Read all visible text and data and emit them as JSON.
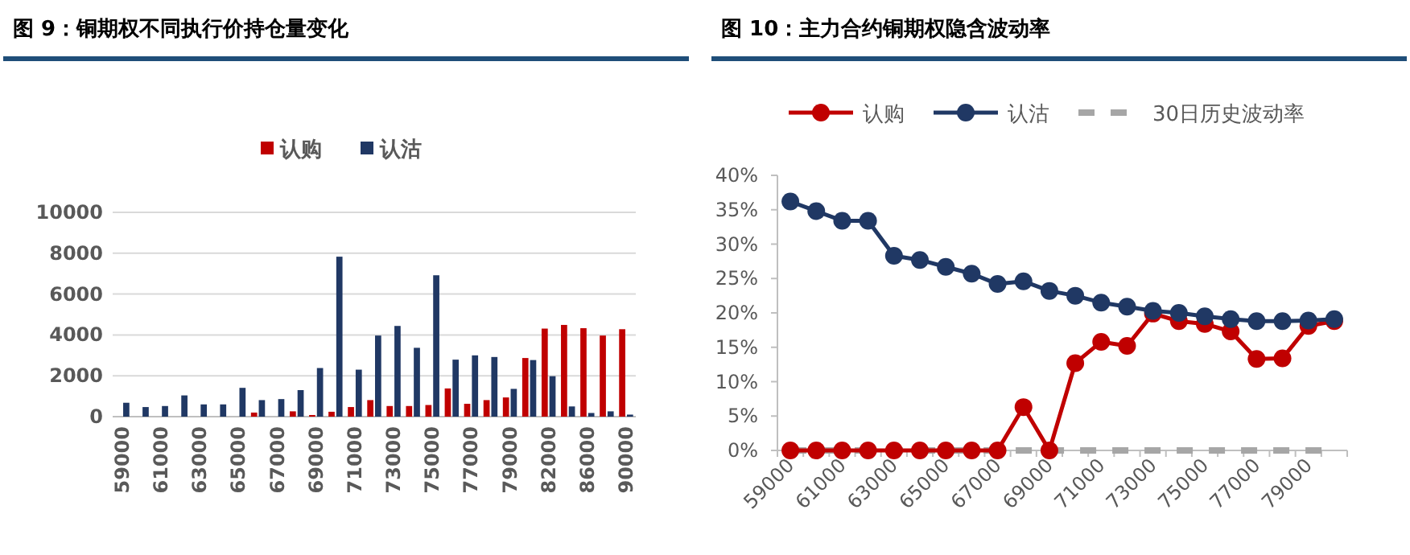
{
  "chart_data": [
    {
      "type": "bar",
      "title": "图 9：铜期权不同执行价持仓量变化",
      "categories": [
        "59000",
        null,
        "61000",
        null,
        "63000",
        null,
        "65000",
        null,
        "67000",
        null,
        "69000",
        null,
        "71000",
        null,
        "73000",
        null,
        "75000",
        null,
        "77000",
        null,
        "79000",
        null,
        "82000",
        null,
        "86000",
        null,
        "90000"
      ],
      "series": [
        {
          "name": "认购",
          "color": "#c00000",
          "values": [
            0,
            0,
            0,
            0,
            0,
            0,
            0,
            200,
            0,
            260,
            80,
            240,
            470,
            810,
            520,
            520,
            570,
            1380,
            630,
            810,
            940,
            2870,
            4310,
            4490,
            4330,
            3970,
            4280
          ]
        },
        {
          "name": "认沽",
          "color": "#203864",
          "values": [
            680,
            470,
            520,
            1040,
            600,
            600,
            1410,
            810,
            860,
            1300,
            2380,
            7830,
            2300,
            3970,
            4440,
            3370,
            6920,
            2790,
            3000,
            2920,
            1360,
            2770,
            1980,
            500,
            180,
            260,
            100
          ]
        }
      ],
      "ylim": [
        0,
        10000
      ],
      "yticks": [
        0,
        2000,
        4000,
        6000,
        8000,
        10000
      ],
      "grid": "y",
      "legend": "top"
    },
    {
      "type": "line",
      "title": "图 10：主力合约铜期权隐含波动率",
      "categories": [
        "59000",
        null,
        "61000",
        null,
        "63000",
        null,
        "65000",
        null,
        "67000",
        null,
        "69000",
        null,
        "71000",
        null,
        "73000",
        null,
        "75000",
        null,
        "77000",
        null,
        "79000",
        null
      ],
      "series": [
        {
          "name": "认购",
          "color": "#c00000",
          "marker": "circle",
          "line_style": "solid",
          "values": [
            0,
            0,
            0,
            0,
            0,
            0,
            0,
            0,
            0,
            6.3,
            0,
            12.7,
            15.8,
            15.2,
            19.9,
            18.8,
            18.4,
            17.3,
            13.3,
            13.4,
            18.1,
            18.8
          ]
        },
        {
          "name": "认沽",
          "color": "#203864",
          "marker": "circle",
          "line_style": "solid",
          "values": [
            36.2,
            34.8,
            33.4,
            33.4,
            28.3,
            27.7,
            26.7,
            25.7,
            24.2,
            24.6,
            23.2,
            22.5,
            21.5,
            20.9,
            20.3,
            20.0,
            19.5,
            19.1,
            18.8,
            18.8,
            18.9,
            19.1
          ]
        },
        {
          "name": "30日历史波动率",
          "color": "#a6a6a6",
          "marker": "none",
          "line_style": "dashed",
          "values": [
            0,
            0,
            0,
            0,
            0,
            0,
            0,
            0,
            0,
            0,
            0,
            0,
            0,
            0,
            0,
            0,
            0,
            0,
            0,
            0,
            0,
            0
          ]
        }
      ],
      "ylim": [
        0,
        40
      ],
      "yticks": [
        {
          "value": 0,
          "label": "0%"
        },
        {
          "value": 5,
          "label": "5%"
        },
        {
          "value": 10,
          "label": "10%"
        },
        {
          "value": 15,
          "label": "15%"
        },
        {
          "value": 20,
          "label": "20%"
        },
        {
          "value": 25,
          "label": "25%"
        },
        {
          "value": 30,
          "label": "30%"
        },
        {
          "value": 35,
          "label": "35%"
        },
        {
          "value": 40,
          "label": "40%"
        }
      ],
      "grid": false,
      "legend": "top"
    }
  ]
}
